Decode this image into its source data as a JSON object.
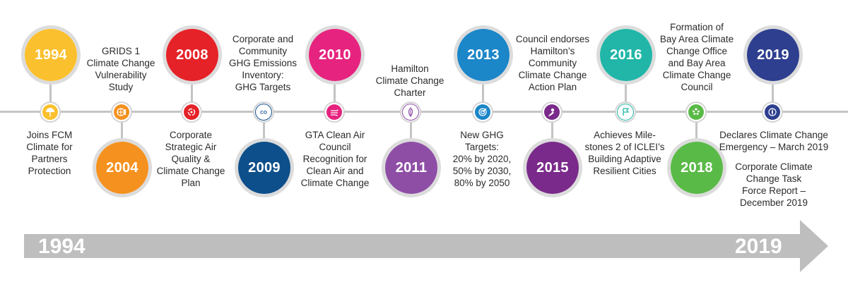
{
  "timeline": {
    "start_year": "1994",
    "end_year": "2019",
    "line_color": "#c4c4c4",
    "arrow_color": "#bebebe"
  },
  "events": [
    {
      "year": "1994",
      "color": "#fbc02d",
      "icon": "umbrella-icon",
      "label": "Joins FCM\nClimate for\nPartners\nProtection"
    },
    {
      "year": "2004",
      "color": "#f5911e",
      "icon": "globe-thermometer-icon",
      "label": "GRIDS 1\nClimate Change\nVulnerability\nStudy"
    },
    {
      "year": "2008",
      "color": "#e52228",
      "icon": "recycle-icon",
      "label": "Corporate\nStrategic Air\nQuality &\nClimate Change\nPlan"
    },
    {
      "year": "2009",
      "color": "#0d4f8b",
      "icon": "co-cloud-icon",
      "label": "Corporate and\nCommunity\nGHG Emissions\nInventory:\nGHG Targets"
    },
    {
      "year": "2010",
      "color": "#e6237f",
      "icon": "wind-icon",
      "label": "GTA Clean Air\nCouncil\nRecognition for\nClean Air and\nClimate Change"
    },
    {
      "year": "2011",
      "color": "#8e4ea6",
      "icon": "leaf-icon",
      "label": "Hamilton\nClimate Change\nCharter"
    },
    {
      "year": "2013",
      "color": "#1b86c8",
      "icon": "target-icon",
      "label": "New GHG\nTargets:\n20% by 2020,\n50% by 2030,\n80% by 2050"
    },
    {
      "year": "2015",
      "color": "#7a2a8a",
      "icon": "hand-icon",
      "label": "Council endorses\nHamilton’s\nCommunity\nClimate Change\nAction Plan"
    },
    {
      "year": "2016",
      "color": "#21b6a8",
      "icon": "flag-icon",
      "label": "Achieves Mile-\nstones 2 of ICLEI’s\nBuilding Adaptive\nResilient Cities"
    },
    {
      "year": "2018",
      "color": "#5aba47",
      "icon": "people-icon",
      "label": "Formation of\nBay Area Climate\nChange Office\nand Bay Area\nClimate Change\nCouncil"
    },
    {
      "year": "2019",
      "color": "#2e3f8f",
      "icon": "compass-globe-icon",
      "label": "Declares Climate Change\nEmergency – March 2019"
    },
    {
      "year": "",
      "color": "#2e3f8f",
      "icon": "",
      "label": "Corporate Climate\nChange Task\nForce Report –\nDecember 2019"
    }
  ]
}
